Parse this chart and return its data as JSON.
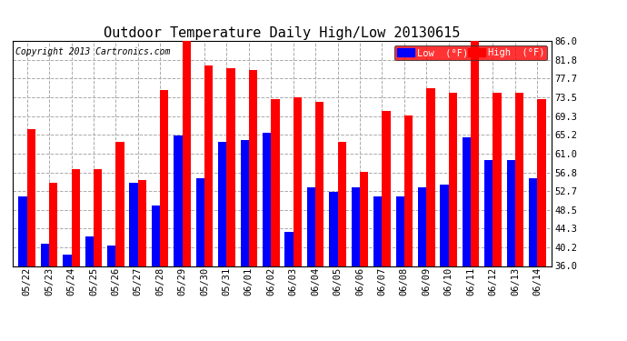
{
  "title": "Outdoor Temperature Daily High/Low 20130615",
  "copyright": "Copyright 2013 Cartronics.com",
  "categories": [
    "05/22",
    "05/23",
    "05/24",
    "05/25",
    "05/26",
    "05/27",
    "05/28",
    "05/29",
    "05/30",
    "05/31",
    "06/01",
    "06/02",
    "06/03",
    "06/04",
    "06/05",
    "06/06",
    "06/07",
    "06/08",
    "06/09",
    "06/10",
    "06/11",
    "06/12",
    "06/13",
    "06/14"
  ],
  "low": [
    51.5,
    41.0,
    38.5,
    42.5,
    40.5,
    54.5,
    49.5,
    65.0,
    55.5,
    63.5,
    64.0,
    65.5,
    43.5,
    53.5,
    52.5,
    53.5,
    51.5,
    51.5,
    53.5,
    54.0,
    64.5,
    59.5,
    59.5,
    55.5
  ],
  "high": [
    66.5,
    54.5,
    57.5,
    57.5,
    63.5,
    55.0,
    75.0,
    86.0,
    80.5,
    80.0,
    79.5,
    73.0,
    73.5,
    72.5,
    63.5,
    57.0,
    70.5,
    69.5,
    75.5,
    74.5,
    86.0,
    74.5,
    74.5,
    73.0
  ],
  "low_color": "#0000ff",
  "high_color": "#ff0000",
  "yticks": [
    36.0,
    40.2,
    44.3,
    48.5,
    52.7,
    56.8,
    61.0,
    65.2,
    69.3,
    73.5,
    77.7,
    81.8,
    86.0
  ],
  "ymin": 36.0,
  "ymax": 86.0,
  "bg_color": "#ffffff",
  "grid_color": "#aaaaaa",
  "legend_low_label": "Low  (°F)",
  "legend_high_label": "High  (°F)",
  "title_fontsize": 11,
  "copyright_fontsize": 7,
  "tick_fontsize": 7.5,
  "bar_width": 0.38
}
